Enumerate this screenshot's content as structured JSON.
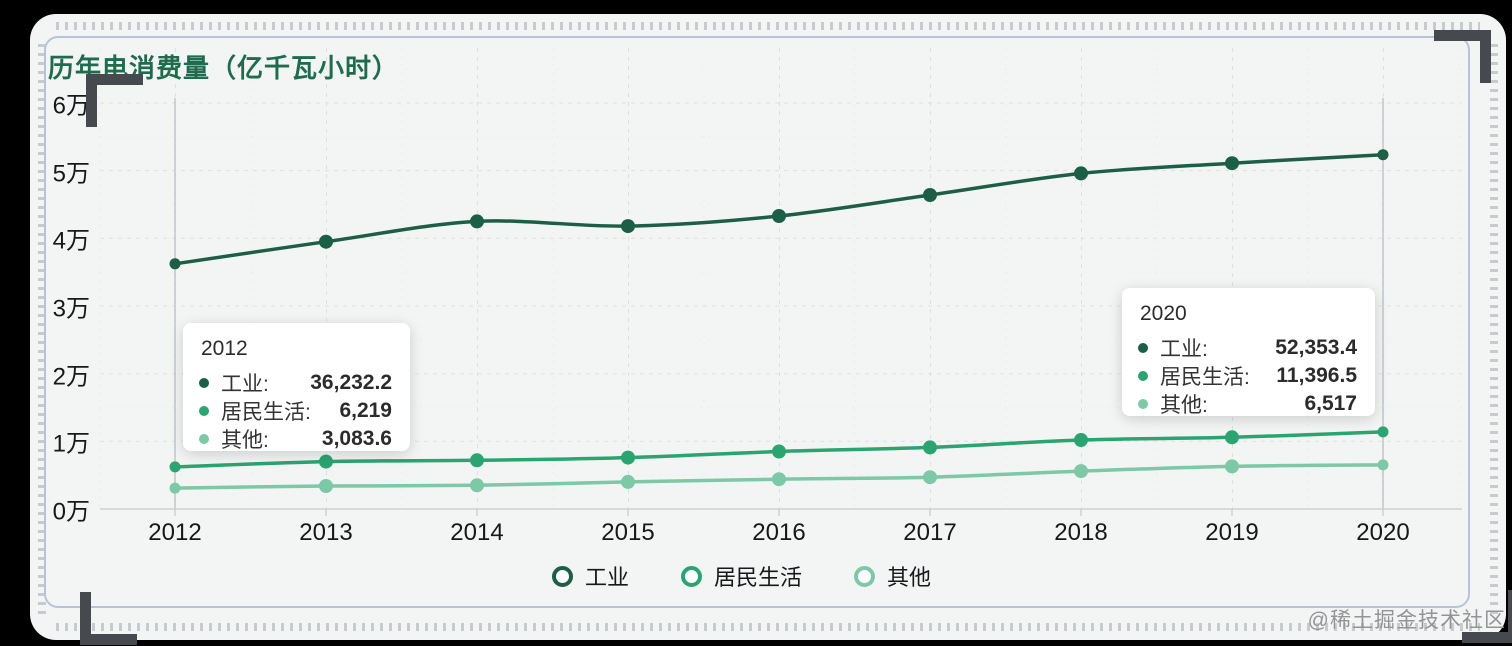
{
  "frame": {
    "watermark": "@稀土掘金技术社区"
  },
  "chart_data": {
    "type": "line",
    "title": "历年电消费量（亿千瓦小时）",
    "categories": [
      "2012",
      "2013",
      "2014",
      "2015",
      "2016",
      "2017",
      "2018",
      "2019",
      "2020"
    ],
    "y_ticks": [
      "0万",
      "1万",
      "2万",
      "3万",
      "4万",
      "5万",
      "6万"
    ],
    "ylim": [
      0,
      60000
    ],
    "grid": true,
    "legend_position": "bottom",
    "smooth": true,
    "series": [
      {
        "name": "工业",
        "key": "industry",
        "color": "#1d5e46",
        "values": [
          36232.2,
          39500,
          42500,
          41800,
          43300,
          46400,
          49600,
          51100,
          52353.4
        ]
      },
      {
        "name": "居民生活",
        "key": "residential",
        "color": "#2ba471",
        "values": [
          6219,
          7000,
          7200,
          7600,
          8500,
          9100,
          10200,
          10600,
          11396.5
        ]
      },
      {
        "name": "其他",
        "key": "other",
        "color": "#7dc8a6",
        "values": [
          3083.6,
          3400,
          3500,
          4000,
          4400,
          4700,
          5600,
          6300,
          6517
        ]
      }
    ],
    "hovered_categories": [
      "2012",
      "2020"
    ]
  },
  "legend": {
    "items": [
      {
        "label": "工业",
        "color": "#1d5e46"
      },
      {
        "label": "居民生活",
        "color": "#2ba471"
      },
      {
        "label": "其他",
        "color": "#7dc8a6"
      }
    ]
  },
  "tooltips": [
    {
      "title": "2012",
      "rows": [
        {
          "label": "工业:",
          "value": "36,232.2",
          "color": "#1d5e46"
        },
        {
          "label": "居民生活:",
          "value": "6,219",
          "color": "#2ba471"
        },
        {
          "label": "其他:",
          "value": "3,083.6",
          "color": "#7dc8a6"
        }
      ]
    },
    {
      "title": "2020",
      "rows": [
        {
          "label": "工业:",
          "value": "52,353.4",
          "color": "#1d5e46"
        },
        {
          "label": "居民生活:",
          "value": "11,396.5",
          "color": "#2ba471"
        },
        {
          "label": "其他:",
          "value": "6,517",
          "color": "#7dc8a6"
        }
      ]
    }
  ],
  "colors": {
    "title": "#1f6b4e",
    "grid_major": "#dce1de",
    "grid_minor": "#e9edeb",
    "axis": "#ccd1ce",
    "hover_line": "#c5cacd",
    "panel_bg": "#f3f5f4"
  }
}
